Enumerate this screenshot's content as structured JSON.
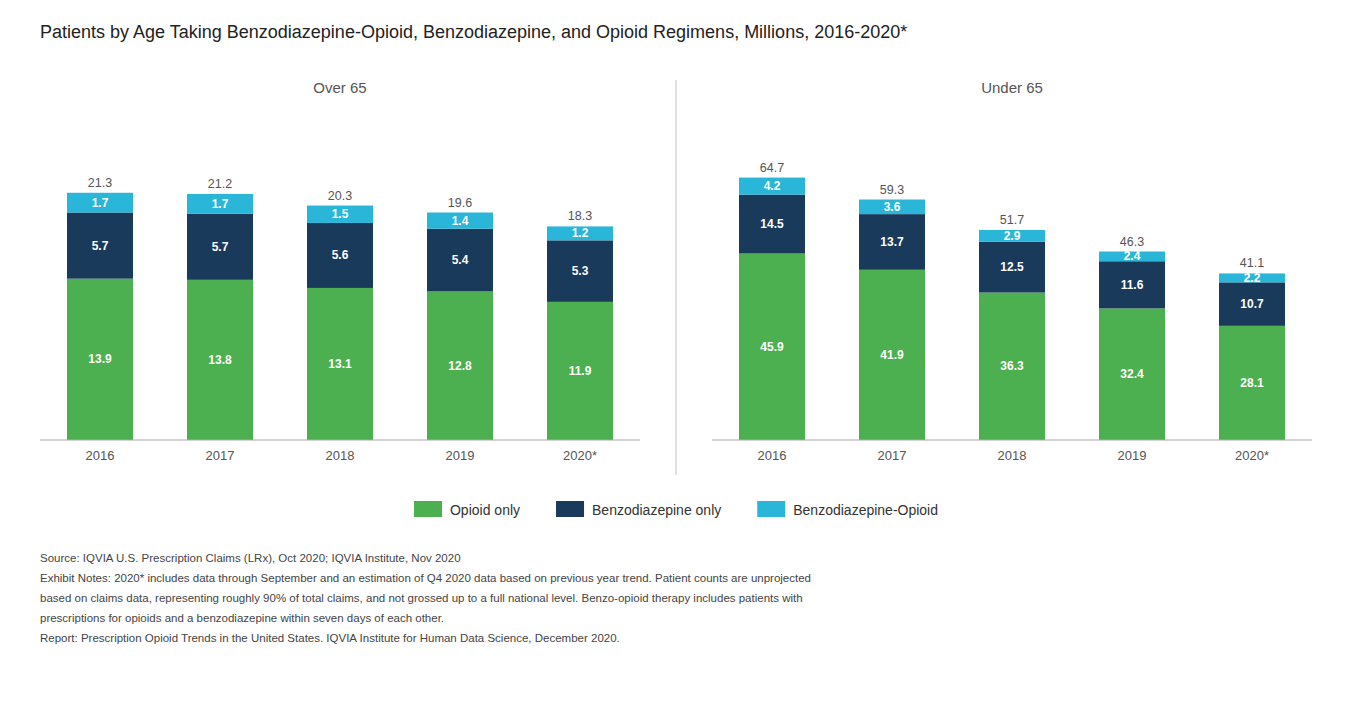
{
  "title": "Patients by Age Taking Benzodiazepine-Opioid, Benzodiazepine, and Opioid Regimens, Millions, 2016-2020*",
  "annotations": [
    "Source: IQVIA U.S. Prescription Claims (LRx), Oct 2020; IQVIA Institute, Nov 2020",
    "Exhibit Notes: 2020* includes data through September and an estimation of Q4 2020 data based on previous year trend. Patient counts are unprojected",
    "based on claims data, representing roughly 90% of total claims, and not grossed up to a full national level. Benzo-opioid therapy includes patients with",
    "prescriptions for opioids and a benzodiazepine within seven days of each other.",
    "Report: Prescription Opioid Trends in the United States. IQVIA Institute for Human Data Science, December 2020."
  ],
  "chart_data": [
    {
      "type": "bar",
      "title": "Over 65",
      "categories": [
        "2016",
        "2017",
        "2018",
        "2019",
        "2020*"
      ],
      "series": [
        {
          "name": "Opioid only",
          "color": "#4CAF50",
          "values": [
            13.9,
            13.8,
            13.1,
            12.8,
            11.9
          ]
        },
        {
          "name": "Benzodiazepine only",
          "color": "#1a3a5c",
          "values": [
            5.7,
            5.7,
            5.6,
            5.4,
            5.3
          ]
        },
        {
          "name": "Benzodiazepine-Opioid",
          "color": "#29b6d8",
          "values": [
            1.7,
            1.7,
            1.5,
            1.4,
            1.2
          ]
        }
      ],
      "totals": [
        21.3,
        21.2,
        20.3,
        19.6,
        18.3
      ],
      "ylim": [
        0,
        28
      ],
      "stacked": true,
      "data_labels": true,
      "tick_labels": "x",
      "grid": false,
      "legend": "bottom"
    },
    {
      "type": "bar",
      "title": "Under 65",
      "categories": [
        "2016",
        "2017",
        "2018",
        "2019",
        "2020*"
      ],
      "series": [
        {
          "name": "Opioid only",
          "color": "#4CAF50",
          "values": [
            45.9,
            41.9,
            36.3,
            32.4,
            28.1
          ]
        },
        {
          "name": "Benzodiazepine only",
          "color": "#1a3a5c",
          "values": [
            14.5,
            13.7,
            12.5,
            11.6,
            10.7
          ]
        },
        {
          "name": "Benzodiazepine-Opioid",
          "color": "#29b6d8",
          "values": [
            4.2,
            3.6,
            2.9,
            2.4,
            2.2
          ]
        }
      ],
      "totals": [
        64.7,
        59.3,
        51.7,
        46.3,
        41.1
      ],
      "ylim": [
        0,
        80
      ],
      "stacked": true,
      "data_labels": true,
      "tick_labels": "x",
      "grid": false,
      "legend": "bottom"
    }
  ]
}
